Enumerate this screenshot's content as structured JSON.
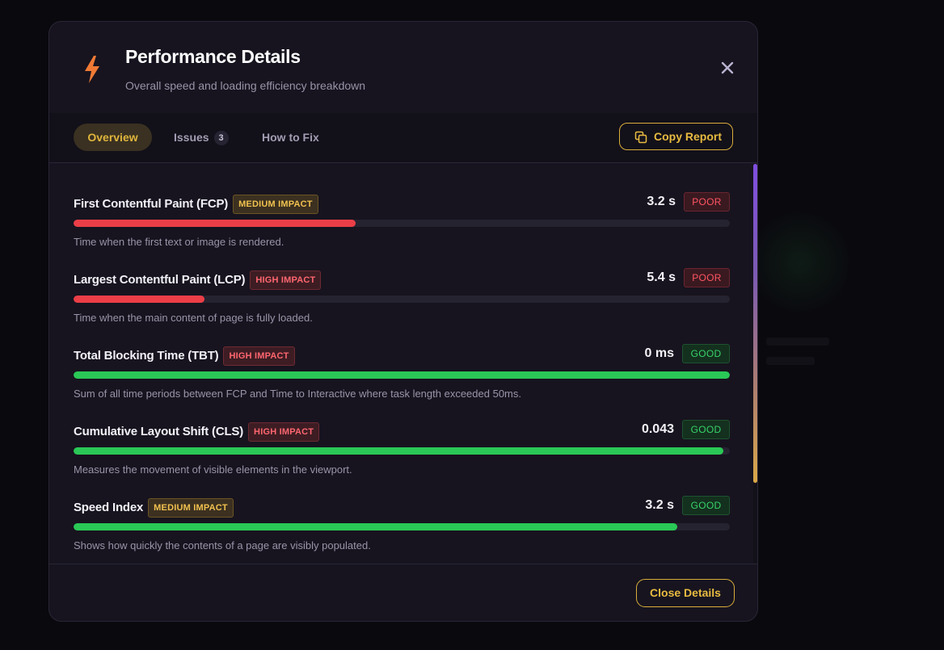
{
  "header": {
    "title": "Performance Details",
    "subtitle": "Overall speed and loading efficiency breakdown",
    "icon": "lightning-bolt-icon",
    "accent": "#f07a35"
  },
  "tabs": [
    {
      "label": "Overview",
      "active": true
    },
    {
      "label": "Issues",
      "count": "3",
      "active": false
    },
    {
      "label": "How to Fix",
      "active": false
    }
  ],
  "actions": {
    "copy_report_label": "Copy Report",
    "close_details_label": "Close Details"
  },
  "metrics": [
    {
      "name": "First Contentful Paint (FCP)",
      "impact": "MEDIUM IMPACT",
      "impact_level": "medium",
      "value": "3.2 s",
      "status": "POOR",
      "status_level": "poor",
      "score": 0.43,
      "description": "Time when the first text or image is rendered."
    },
    {
      "name": "Largest Contentful Paint (LCP)",
      "impact": "HIGH IMPACT",
      "impact_level": "high",
      "value": "5.4 s",
      "status": "POOR",
      "status_level": "poor",
      "score": 0.2,
      "description": "Time when the main content of page is fully loaded."
    },
    {
      "name": "Total Blocking Time (TBT)",
      "impact": "HIGH IMPACT",
      "impact_level": "high",
      "value": "0 ms",
      "status": "GOOD",
      "status_level": "good",
      "score": 1.0,
      "description": "Sum of all time periods between FCP and Time to Interactive where task length exceeded 50ms."
    },
    {
      "name": "Cumulative Layout Shift (CLS)",
      "impact": "HIGH IMPACT",
      "impact_level": "high",
      "value": "0.043",
      "status": "GOOD",
      "status_level": "good",
      "score": 0.99,
      "description": "Measures the movement of visible elements in the viewport."
    },
    {
      "name": "Speed Index",
      "impact": "MEDIUM IMPACT",
      "impact_level": "medium",
      "value": "3.2 s",
      "status": "GOOD",
      "status_level": "good",
      "score": 0.92,
      "description": "Shows how quickly the contents of a page are visibly populated."
    }
  ]
}
